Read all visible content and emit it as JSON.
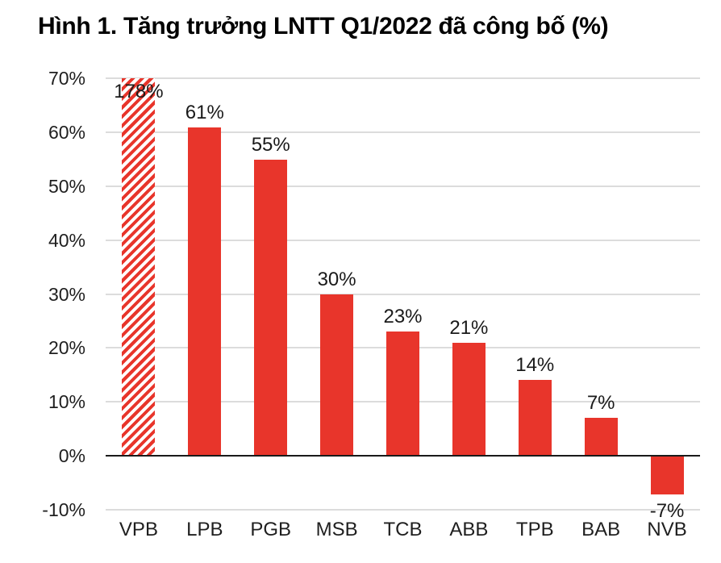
{
  "title": "Hình 1. Tăng trưởng LNTT Q1/2022 đã công bố (%)",
  "chart_data": {
    "type": "bar",
    "title": "Hình 1. Tăng trưởng LNTT Q1/2022 đã công bố (%)",
    "categories": [
      "VPB",
      "LPB",
      "PGB",
      "MSB",
      "TCB",
      "ABB",
      "TPB",
      "BAB",
      "NVB"
    ],
    "values": [
      178,
      61,
      55,
      30,
      23,
      21,
      14,
      7,
      -7
    ],
    "value_labels": [
      "178%",
      "61%",
      "55%",
      "30%",
      "23%",
      "21%",
      "14%",
      "7%",
      "-7%"
    ],
    "xlabel": "",
    "ylabel": "",
    "ylim": [
      -10,
      70
    ],
    "yticks": [
      70,
      60,
      50,
      40,
      30,
      20,
      10,
      0,
      -10
    ],
    "ytick_labels": [
      "70%",
      "60%",
      "50%",
      "40%",
      "30%",
      "20%",
      "10%",
      "0%",
      "-10%"
    ],
    "grid": true,
    "legend": false,
    "hatched_categories": [
      "VPB"
    ],
    "note_first_bar": "VPB bar (178%) is hatched and clipped at the 70% axis maximum"
  },
  "colors": {
    "bar": "#e8352b",
    "hatch_background": "#ffffff",
    "gridline": "#dcdcdc",
    "zero_axis_line": "#1a1a1a",
    "text": "#1f1f1f",
    "title_text": "#000000",
    "background": "#ffffff"
  }
}
